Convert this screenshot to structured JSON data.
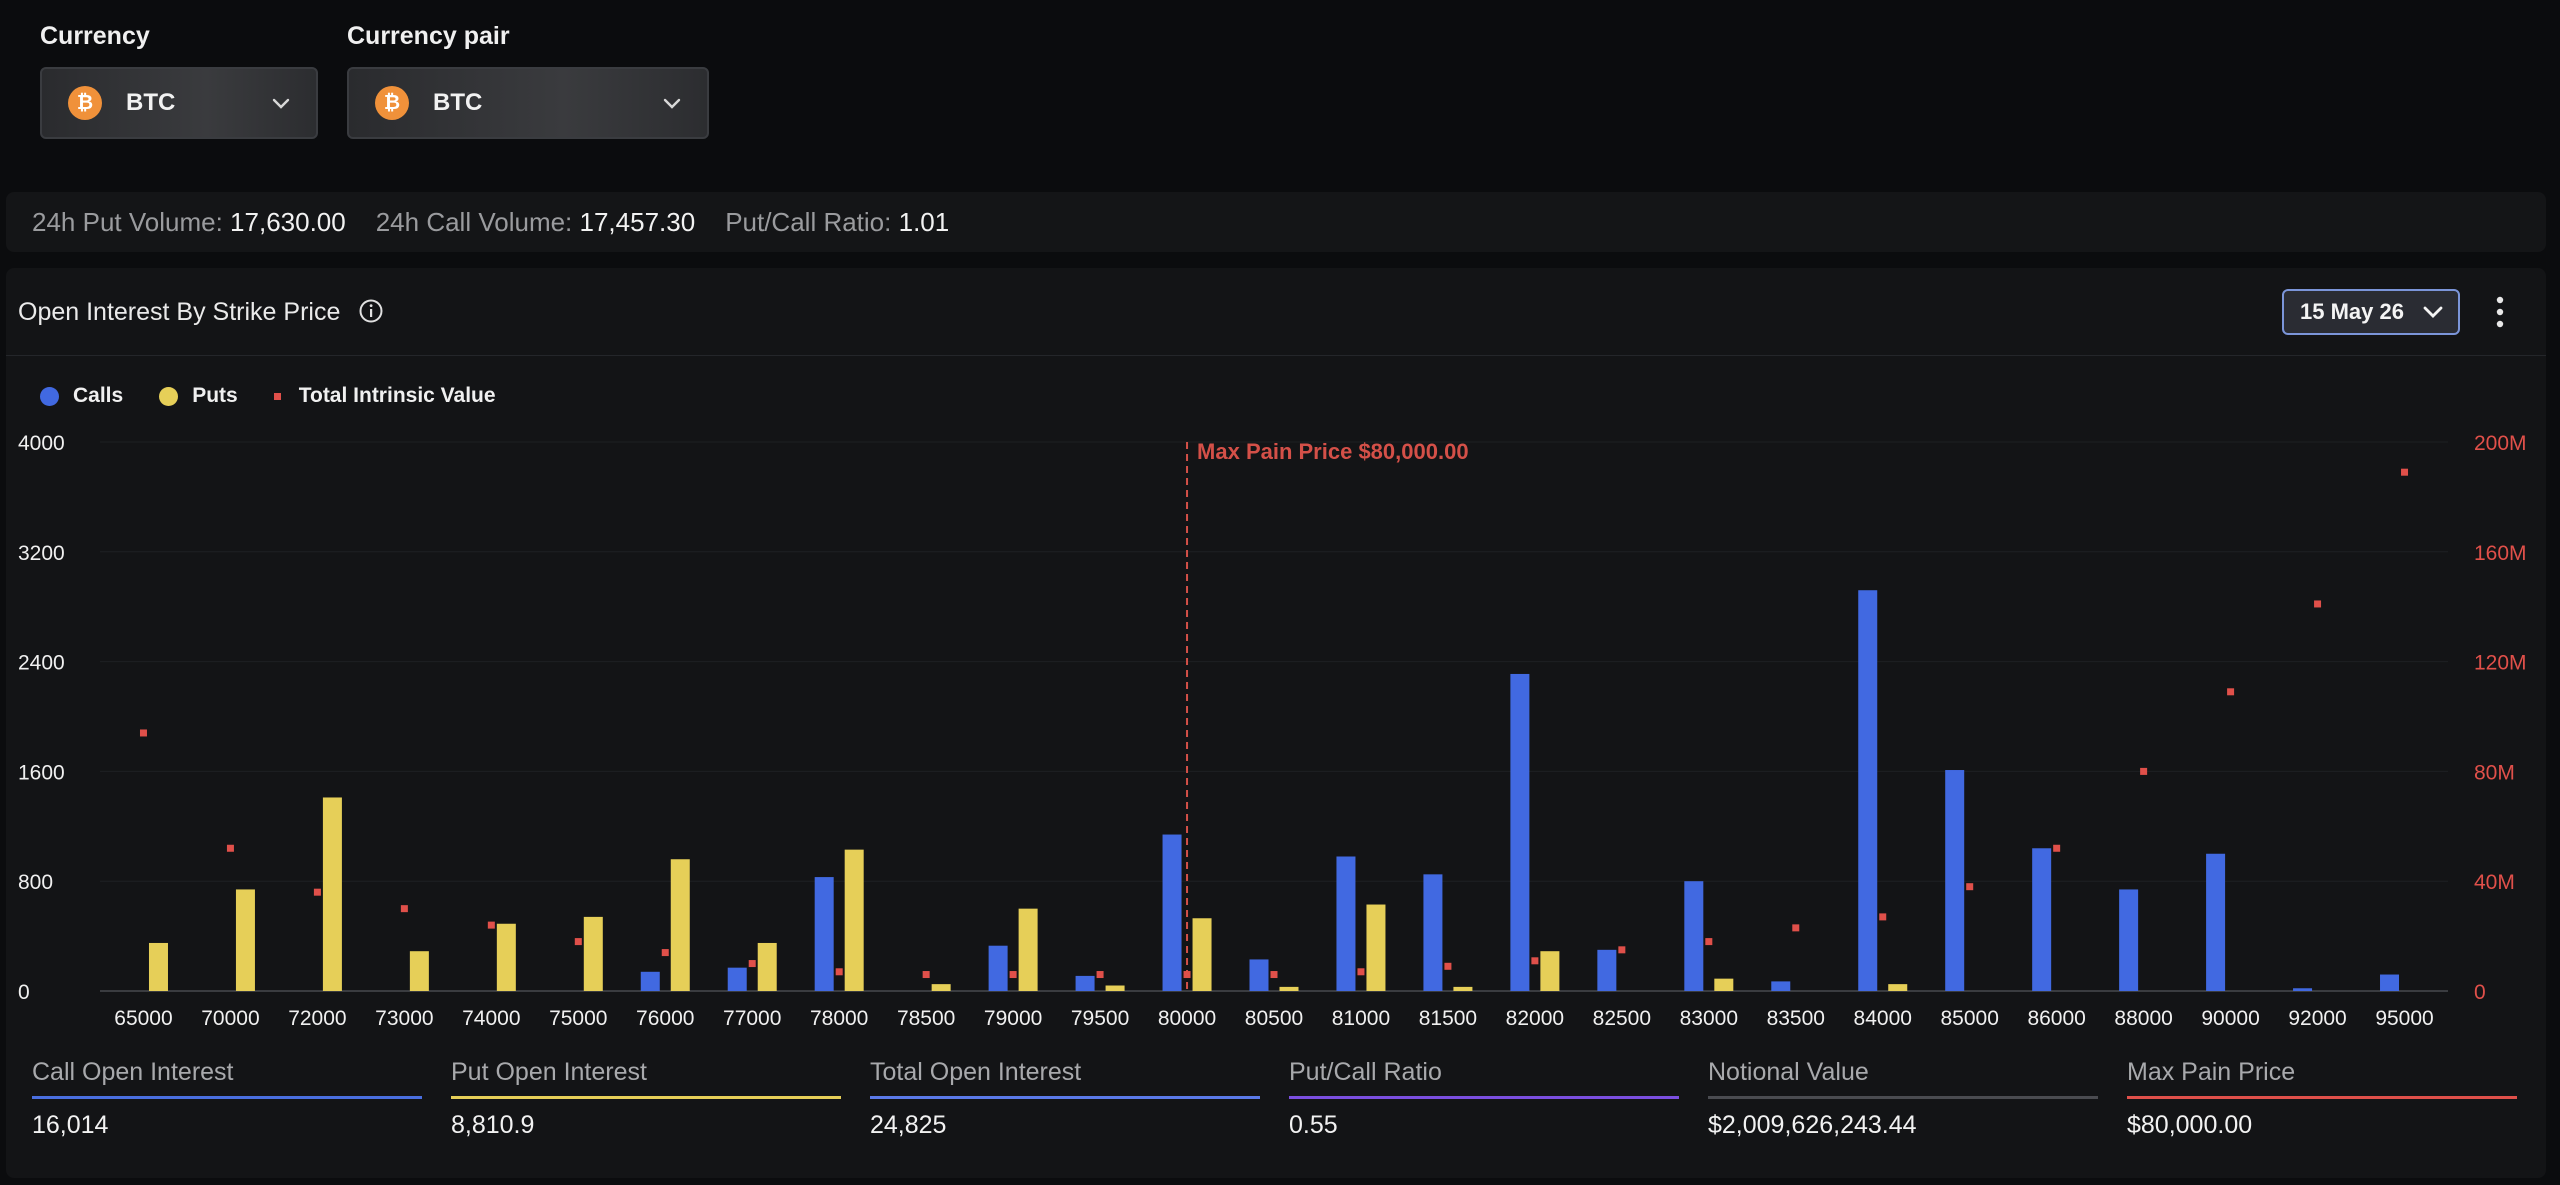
{
  "selectors": {
    "currency": {
      "label": "Currency",
      "value": "BTC"
    },
    "pair": {
      "label": "Currency pair",
      "value": "BTC"
    }
  },
  "stats": [
    {
      "label": "24h Put Volume:",
      "value": "17,630.00"
    },
    {
      "label": "24h Call Volume:",
      "value": "17,457.30"
    },
    {
      "label": "Put/Call Ratio:",
      "value": "1.01"
    }
  ],
  "panel": {
    "title": "Open Interest By Strike Price",
    "date": "15 May 26"
  },
  "legend": {
    "calls": "Calls",
    "puts": "Puts",
    "tiv": "Total Intrinsic Value"
  },
  "colors": {
    "calls": "#4169e1",
    "puts": "#e6cf58",
    "tiv": "#e0504a",
    "maxpain": "#d45048"
  },
  "chart_data": {
    "type": "bar",
    "categories": [
      "65000",
      "70000",
      "72000",
      "73000",
      "74000",
      "75000",
      "76000",
      "77000",
      "78000",
      "78500",
      "79000",
      "79500",
      "80000",
      "80500",
      "81000",
      "81500",
      "82000",
      "82500",
      "83000",
      "83500",
      "84000",
      "85000",
      "86000",
      "88000",
      "90000",
      "92000",
      "95000"
    ],
    "series": [
      {
        "name": "Calls",
        "axis": "left",
        "values": [
          0,
          0,
          0,
          0,
          0,
          0,
          140,
          170,
          830,
          0,
          330,
          110,
          1140,
          230,
          980,
          850,
          2310,
          300,
          800,
          70,
          2920,
          1610,
          1040,
          740,
          1000,
          20,
          120
        ]
      },
      {
        "name": "Puts",
        "axis": "left",
        "values": [
          350,
          740,
          1410,
          290,
          490,
          540,
          960,
          350,
          1030,
          50,
          600,
          40,
          530,
          30,
          630,
          30,
          290,
          0,
          90,
          0,
          50,
          0,
          0,
          0,
          0,
          0,
          0
        ]
      },
      {
        "name": "Total Intrinsic Value",
        "axis": "right",
        "type": "scatter",
        "values": [
          94000000,
          52000000,
          36000000,
          30000000,
          24000000,
          18000000,
          14000000,
          10000000,
          7000000,
          6000000,
          6000000,
          6000000,
          6000000,
          6000000,
          7000000,
          9000000,
          11000000,
          15000000,
          18000000,
          23000000,
          27000000,
          38000000,
          52000000,
          80000000,
          109000000,
          141000000,
          189000000
        ]
      }
    ],
    "y_left": {
      "min": 0,
      "max": 4000,
      "ticks": [
        "0",
        "800",
        "1600",
        "2400",
        "3200",
        "4000"
      ]
    },
    "y_right": {
      "min": 0,
      "max": 200000000,
      "ticks": [
        "0",
        "40M",
        "80M",
        "120M",
        "160M",
        "200M"
      ]
    },
    "max_pain": {
      "label": "Max Pain Price $80,000.00",
      "category": "80000"
    },
    "grid": true,
    "legend_position": "top-left"
  },
  "metrics": [
    {
      "label": "Call Open Interest",
      "value": "16,014",
      "color": "#4a6fe0"
    },
    {
      "label": "Put Open Interest",
      "value": "8,810.9",
      "color": "#e6cf58"
    },
    {
      "label": "Total Open Interest",
      "value": "24,825",
      "color": "#5b7ae8"
    },
    {
      "label": "Put/Call Ratio",
      "value": "0.55",
      "color": "#7b4fe0"
    },
    {
      "label": "Notional Value",
      "value": "$2,009,626,243.44",
      "color": "#4a4b50"
    },
    {
      "label": "Max Pain Price",
      "value": "$80,000.00",
      "color": "#e0504a"
    }
  ]
}
